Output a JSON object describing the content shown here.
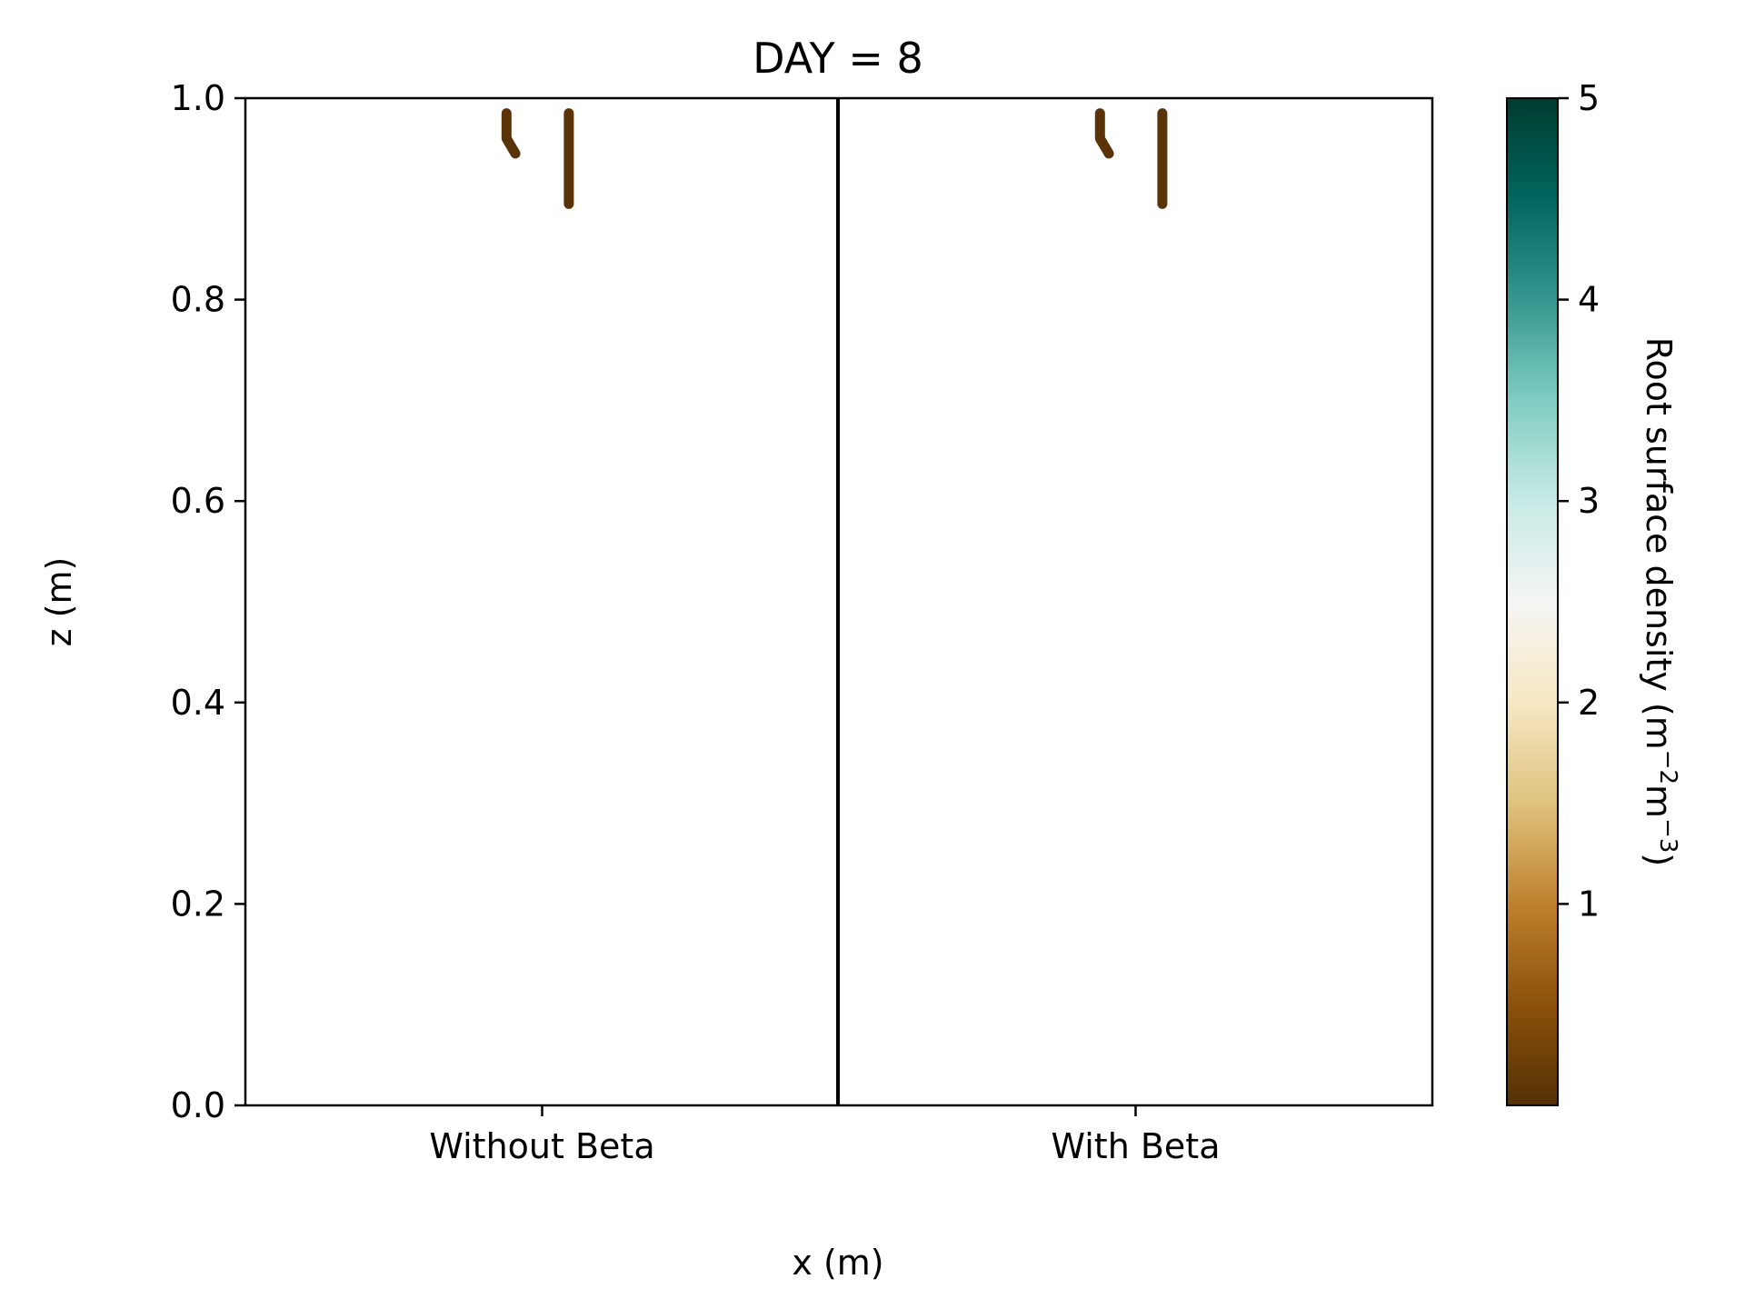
{
  "chart_data": {
    "type": "heatmap",
    "title": "DAY = 8",
    "xlabel": "x (m)",
    "ylabel": "z (m)",
    "ylim": [
      0.0,
      1.0
    ],
    "y_ticks": [
      "0.0",
      "0.2",
      "0.4",
      "0.6",
      "0.8",
      "1.0"
    ],
    "y_tick_values": [
      0.0,
      0.2,
      0.4,
      0.6,
      0.8,
      1.0
    ],
    "panels": [
      {
        "label": "Without Beta",
        "roots": [
          {
            "points": [
              [
                0.44,
                0.985
              ],
              [
                0.44,
                0.96
              ],
              [
                0.455,
                0.945
              ]
            ]
          },
          {
            "points": [
              [
                0.545,
                0.985
              ],
              [
                0.545,
                0.895
              ]
            ]
          }
        ]
      },
      {
        "label": "With Beta",
        "roots": [
          {
            "points": [
              [
                0.44,
                0.985
              ],
              [
                0.44,
                0.96
              ],
              [
                0.455,
                0.945
              ]
            ]
          },
          {
            "points": [
              [
                0.545,
                0.985
              ],
              [
                0.545,
                0.895
              ]
            ]
          }
        ]
      }
    ],
    "colorbar": {
      "label_main": "Root surface density (m",
      "label_exp1": "−2",
      "label_mid": "m",
      "label_exp2": "−3",
      "label_end": ")",
      "range": [
        0,
        5
      ],
      "ticks": [
        "1",
        "2",
        "3",
        "4",
        "5"
      ],
      "tick_values": [
        1,
        2,
        3,
        4,
        5
      ],
      "colormap": "BrBG",
      "colors": [
        "#543005",
        "#8c510a",
        "#bf812d",
        "#dfc27d",
        "#f6e8c3",
        "#f5f5f5",
        "#c7eae5",
        "#80cdc1",
        "#35978f",
        "#01665e",
        "#003c30"
      ]
    },
    "root_color": "#5a3408",
    "grid": false
  }
}
